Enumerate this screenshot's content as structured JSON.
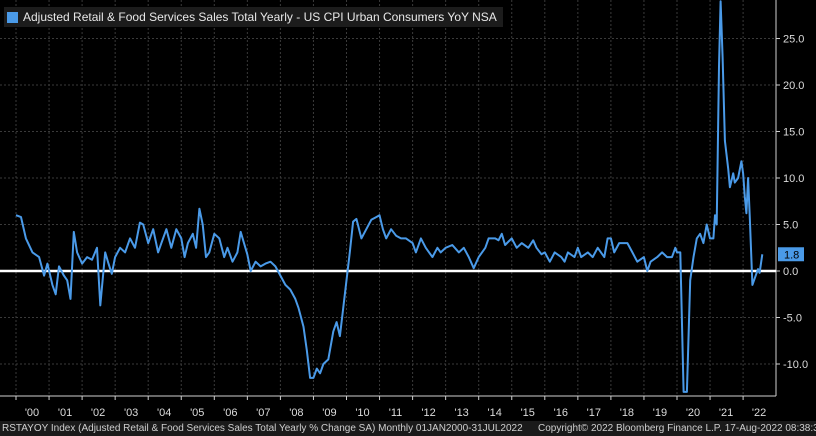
{
  "chart_data": {
    "type": "line",
    "title": "Adjusted Retail & Food Services Sales Total Yearly - US CPI Urban Consumers YoY NSA",
    "series_name": "Adjusted Retail & Food Services Sales Total Yearly - US CPI Urban Consumers YoY NSA",
    "line_color": "#4a9ae8",
    "zero_line_color": "#ffffff",
    "ylim": [
      -13.0,
      29.0
    ],
    "y_ticks": [
      25.0,
      20.0,
      15.0,
      10.0,
      5.0,
      0.0,
      -5.0,
      -10.0
    ],
    "y_tick_labels": [
      "25.0",
      "20.0",
      "15.0",
      "10.0",
      "5.0",
      "0.0",
      "-5.0",
      "-10.0"
    ],
    "x_range": [
      2000.0,
      2022.7
    ],
    "x_ticks": [
      2000,
      2001,
      2002,
      2003,
      2004,
      2005,
      2006,
      2007,
      2008,
      2009,
      2010,
      2011,
      2012,
      2013,
      2014,
      2015,
      2016,
      2017,
      2018,
      2019,
      2020,
      2021,
      2022
    ],
    "x_tick_labels": [
      "'00",
      "'01",
      "'02",
      "'03",
      "'04",
      "'05",
      "'06",
      "'07",
      "'08",
      "'09",
      "'10",
      "'11",
      "'12",
      "'13",
      "'14",
      "'15",
      "'16",
      "'17",
      "'18",
      "'19",
      "'20",
      "'21",
      "'22"
    ],
    "last_value": 1.8,
    "last_value_label": "1.8",
    "points": [
      [
        2000.0,
        6.0
      ],
      [
        2000.15,
        5.8
      ],
      [
        2000.3,
        3.5
      ],
      [
        2000.5,
        2.0
      ],
      [
        2000.7,
        1.5
      ],
      [
        2000.85,
        -0.5
      ],
      [
        2000.95,
        0.8
      ],
      [
        2001.1,
        -1.5
      ],
      [
        2001.2,
        -2.5
      ],
      [
        2001.3,
        0.5
      ],
      [
        2001.45,
        -0.5
      ],
      [
        2001.55,
        -1.0
      ],
      [
        2001.65,
        -3.0
      ],
      [
        2001.75,
        4.2
      ],
      [
        2001.85,
        2.0
      ],
      [
        2002.0,
        0.8
      ],
      [
        2002.15,
        1.5
      ],
      [
        2002.3,
        1.2
      ],
      [
        2002.45,
        2.5
      ],
      [
        2002.55,
        -3.7
      ],
      [
        2002.62,
        -1.0
      ],
      [
        2002.7,
        2.0
      ],
      [
        2002.8,
        0.8
      ],
      [
        2002.9,
        -0.3
      ],
      [
        2003.0,
        1.5
      ],
      [
        2003.15,
        2.5
      ],
      [
        2003.3,
        2.0
      ],
      [
        2003.45,
        3.5
      ],
      [
        2003.6,
        2.5
      ],
      [
        2003.75,
        5.2
      ],
      [
        2003.85,
        5.0
      ],
      [
        2004.0,
        3.0
      ],
      [
        2004.15,
        4.5
      ],
      [
        2004.3,
        2.0
      ],
      [
        2004.4,
        3.0
      ],
      [
        2004.55,
        4.5
      ],
      [
        2004.7,
        2.5
      ],
      [
        2004.85,
        4.5
      ],
      [
        2005.0,
        3.5
      ],
      [
        2005.1,
        1.5
      ],
      [
        2005.2,
        3.0
      ],
      [
        2005.35,
        4.0
      ],
      [
        2005.45,
        2.5
      ],
      [
        2005.55,
        6.7
      ],
      [
        2005.65,
        5.0
      ],
      [
        2005.75,
        1.5
      ],
      [
        2005.85,
        2.0
      ],
      [
        2006.0,
        4.0
      ],
      [
        2006.15,
        3.5
      ],
      [
        2006.3,
        1.5
      ],
      [
        2006.4,
        2.5
      ],
      [
        2006.55,
        1.0
      ],
      [
        2006.7,
        2.0
      ],
      [
        2006.8,
        4.2
      ],
      [
        2006.9,
        3.0
      ],
      [
        2007.0,
        1.8
      ],
      [
        2007.1,
        0.0
      ],
      [
        2007.25,
        1.0
      ],
      [
        2007.4,
        0.5
      ],
      [
        2007.55,
        0.8
      ],
      [
        2007.7,
        1.0
      ],
      [
        2007.85,
        0.5
      ],
      [
        2008.0,
        -0.5
      ],
      [
        2008.15,
        -1.5
      ],
      [
        2008.3,
        -2.0
      ],
      [
        2008.45,
        -3.0
      ],
      [
        2008.55,
        -4.0
      ],
      [
        2008.7,
        -6.0
      ],
      [
        2008.8,
        -8.5
      ],
      [
        2008.9,
        -11.5
      ],
      [
        2009.0,
        -11.5
      ],
      [
        2009.1,
        -10.5
      ],
      [
        2009.2,
        -11.0
      ],
      [
        2009.3,
        -10.0
      ],
      [
        2009.45,
        -9.5
      ],
      [
        2009.6,
        -6.5
      ],
      [
        2009.7,
        -5.5
      ],
      [
        2009.8,
        -7.0
      ],
      [
        2009.9,
        -4.0
      ],
      [
        2010.0,
        -1.0
      ],
      [
        2010.1,
        2.0
      ],
      [
        2010.2,
        5.3
      ],
      [
        2010.3,
        5.6
      ],
      [
        2010.45,
        3.5
      ],
      [
        2010.6,
        4.5
      ],
      [
        2010.75,
        5.5
      ],
      [
        2010.9,
        5.8
      ],
      [
        2011.0,
        6.0
      ],
      [
        2011.1,
        4.5
      ],
      [
        2011.2,
        3.5
      ],
      [
        2011.35,
        4.5
      ],
      [
        2011.5,
        3.8
      ],
      [
        2011.65,
        3.5
      ],
      [
        2011.8,
        3.5
      ],
      [
        2012.0,
        3.0
      ],
      [
        2012.1,
        2.0
      ],
      [
        2012.25,
        3.5
      ],
      [
        2012.4,
        2.5
      ],
      [
        2012.6,
        1.5
      ],
      [
        2012.75,
        2.5
      ],
      [
        2012.85,
        2.0
      ],
      [
        2013.0,
        2.5
      ],
      [
        2013.2,
        2.8
      ],
      [
        2013.4,
        2.0
      ],
      [
        2013.55,
        2.5
      ],
      [
        2013.7,
        1.5
      ],
      [
        2013.85,
        0.3
      ],
      [
        2014.0,
        1.5
      ],
      [
        2014.2,
        2.5
      ],
      [
        2014.3,
        3.5
      ],
      [
        2014.5,
        3.5
      ],
      [
        2014.6,
        3.3
      ],
      [
        2014.7,
        4.0
      ],
      [
        2014.8,
        2.8
      ],
      [
        2015.0,
        3.5
      ],
      [
        2015.15,
        2.5
      ],
      [
        2015.3,
        3.0
      ],
      [
        2015.5,
        2.5
      ],
      [
        2015.65,
        3.3
      ],
      [
        2015.75,
        2.5
      ],
      [
        2015.9,
        1.8
      ],
      [
        2016.0,
        2.0
      ],
      [
        2016.15,
        1.0
      ],
      [
        2016.3,
        2.0
      ],
      [
        2016.5,
        1.5
      ],
      [
        2016.6,
        1.0
      ],
      [
        2016.7,
        2.0
      ],
      [
        2016.9,
        1.5
      ],
      [
        2017.0,
        2.5
      ],
      [
        2017.1,
        1.5
      ],
      [
        2017.3,
        2.0
      ],
      [
        2017.45,
        1.5
      ],
      [
        2017.6,
        2.5
      ],
      [
        2017.8,
        1.5
      ],
      [
        2017.9,
        3.5
      ],
      [
        2018.0,
        3.5
      ],
      [
        2018.1,
        2.0
      ],
      [
        2018.25,
        3.0
      ],
      [
        2018.5,
        3.0
      ],
      [
        2018.65,
        2.0
      ],
      [
        2018.8,
        1.0
      ],
      [
        2019.0,
        1.5
      ],
      [
        2019.1,
        0.0
      ],
      [
        2019.2,
        1.0
      ],
      [
        2019.4,
        1.5
      ],
      [
        2019.55,
        2.0
      ],
      [
        2019.7,
        1.5
      ],
      [
        2019.85,
        1.5
      ],
      [
        2019.95,
        2.5
      ],
      [
        2020.0,
        2.0
      ],
      [
        2020.1,
        2.0
      ],
      [
        2020.2,
        -13.0
      ],
      [
        2020.3,
        -13.0
      ],
      [
        2020.4,
        -1.0
      ],
      [
        2020.5,
        1.5
      ],
      [
        2020.6,
        3.5
      ],
      [
        2020.7,
        4.0
      ],
      [
        2020.8,
        3.0
      ],
      [
        2020.9,
        5.0
      ],
      [
        2021.0,
        3.5
      ],
      [
        2021.1,
        3.5
      ],
      [
        2021.15,
        6.0
      ],
      [
        2021.2,
        5.0
      ],
      [
        2021.27,
        22.0
      ],
      [
        2021.32,
        29.0
      ],
      [
        2021.38,
        23.0
      ],
      [
        2021.45,
        14.0
      ],
      [
        2021.55,
        11.0
      ],
      [
        2021.6,
        9.0
      ],
      [
        2021.7,
        10.5
      ],
      [
        2021.75,
        9.5
      ],
      [
        2021.85,
        10.0
      ],
      [
        2021.95,
        11.8
      ],
      [
        2022.0,
        10.5
      ],
      [
        2022.05,
        8.0
      ],
      [
        2022.1,
        6.2
      ],
      [
        2022.15,
        10.0
      ],
      [
        2022.2,
        6.0
      ],
      [
        2022.28,
        -1.5
      ],
      [
        2022.38,
        -0.5
      ],
      [
        2022.45,
        0.2
      ],
      [
        2022.5,
        -0.2
      ],
      [
        2022.58,
        1.8
      ]
    ]
  },
  "footer": {
    "left": "RSTAYOY Index (Adjusted Retail & Food Services Sales Total Yearly % Change SA)  Monthly 01JAN2000-31JUL2022",
    "right": "Copyright© 2022 Bloomberg Finance L.P.   17-Aug-2022 08:38:32"
  }
}
